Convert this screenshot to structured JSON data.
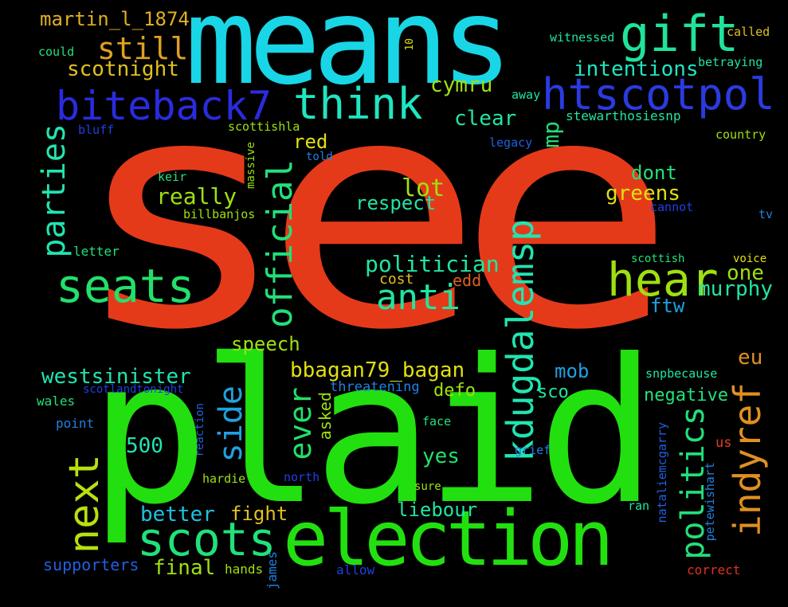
{
  "words": [
    {
      "id": "see",
      "text": "see",
      "color": "#e53a1a"
    },
    {
      "id": "plaid",
      "text": "plaid",
      "color": "#22e00f"
    },
    {
      "id": "means",
      "text": "means",
      "color": "#19d6e6"
    },
    {
      "id": "election",
      "text": "election",
      "color": "#22e00f"
    },
    {
      "id": "gift",
      "text": "gift",
      "color": "#20e39a"
    },
    {
      "id": "htscotpol",
      "text": "htscotpol",
      "color": "#2a3be0"
    },
    {
      "id": "biteback7",
      "text": "biteback7",
      "color": "#2a2be0"
    },
    {
      "id": "think",
      "text": "think",
      "color": "#20e5c0"
    },
    {
      "id": "seats",
      "text": "seats",
      "color": "#22e06a"
    },
    {
      "id": "hear",
      "text": "hear",
      "color": "#9fe010"
    },
    {
      "id": "scots",
      "text": "scots",
      "color": "#22e07a"
    },
    {
      "id": "next",
      "text": "next",
      "color": "#b8e010"
    },
    {
      "id": "official",
      "text": "official",
      "color": "#22e07a"
    },
    {
      "id": "kdugdalemsp",
      "text": "kdugdalemsp",
      "color": "#20e5b0"
    },
    {
      "id": "indyref",
      "text": "indyref",
      "color": "#e09020"
    },
    {
      "id": "anti",
      "text": "anti",
      "color": "#20e5a0"
    },
    {
      "id": "parties",
      "text": "parties",
      "color": "#20e5b0"
    },
    {
      "id": "politics",
      "text": "politics",
      "color": "#22e07a"
    },
    {
      "id": "side",
      "text": "side",
      "color": "#20a0e0"
    },
    {
      "id": "ever",
      "text": "ever",
      "color": "#22e06a"
    },
    {
      "id": "still",
      "text": "still",
      "color": "#e0a020"
    },
    {
      "id": "martin",
      "text": "martin_l_1874",
      "color": "#e0b020"
    },
    {
      "id": "scotnight",
      "text": "scotnight",
      "color": "#e0c020"
    },
    {
      "id": "intentions",
      "text": "intentions",
      "color": "#20e5c0"
    },
    {
      "id": "cymru",
      "text": "cymru",
      "color": "#9fe010"
    },
    {
      "id": "clear",
      "text": "clear",
      "color": "#20e5a0"
    },
    {
      "id": "mp",
      "text": "mp",
      "color": "#22e07a"
    },
    {
      "id": "lot",
      "text": "lot",
      "color": "#9fe010"
    },
    {
      "id": "greens",
      "text": "greens",
      "color": "#e0e010"
    },
    {
      "id": "dont",
      "text": "dont",
      "color": "#22e07a"
    },
    {
      "id": "respect",
      "text": "respect",
      "color": "#20e5a0"
    },
    {
      "id": "really",
      "text": "really",
      "color": "#9fe010"
    },
    {
      "id": "red",
      "text": "red",
      "color": "#e0e010"
    },
    {
      "id": "politician",
      "text": "politician",
      "color": "#20e5a0"
    },
    {
      "id": "one",
      "text": "one",
      "color": "#9fe010"
    },
    {
      "id": "murphy",
      "text": "murphy",
      "color": "#20e5a0"
    },
    {
      "id": "edd",
      "text": "edd",
      "color": "#e06020"
    },
    {
      "id": "cost",
      "text": "cost",
      "color": "#e0c020"
    },
    {
      "id": "ftw",
      "text": "ftw",
      "color": "#20a0e0"
    },
    {
      "id": "speech",
      "text": "speech",
      "color": "#9fe010"
    },
    {
      "id": "eu",
      "text": "eu",
      "color": "#e09020"
    },
    {
      "id": "westsinister",
      "text": "westsinister",
      "color": "#20e5b0"
    },
    {
      "id": "bbagan",
      "text": "bbagan79_bagan",
      "color": "#e0e010"
    },
    {
      "id": "mob",
      "text": "mob",
      "color": "#20a0e0"
    },
    {
      "id": "sco",
      "text": "sco",
      "color": "#20e5a0"
    },
    {
      "id": "defo",
      "text": "defo",
      "color": "#9fe010"
    },
    {
      "id": "negative",
      "text": "negative",
      "color": "#22e07a"
    },
    {
      "id": "threatening",
      "text": "threatening",
      "color": "#2080e0"
    },
    {
      "id": "asked",
      "text": "asked",
      "color": "#9fe010"
    },
    {
      "id": "yes",
      "text": "yes",
      "color": "#22e06a"
    },
    {
      "id": "500",
      "text": "500",
      "color": "#20e5b0"
    },
    {
      "id": "better",
      "text": "better",
      "color": "#20c0e0"
    },
    {
      "id": "fight",
      "text": "fight",
      "color": "#e0c020"
    },
    {
      "id": "final",
      "text": "final",
      "color": "#9fe010"
    },
    {
      "id": "liebour",
      "text": "liebour",
      "color": "#20e5a0"
    },
    {
      "id": "supporters",
      "text": "supporters",
      "color": "#2060e0"
    },
    {
      "id": "hands",
      "text": "hands",
      "color": "#9fe010"
    },
    {
      "id": "james",
      "text": "james",
      "color": "#2080e0"
    },
    {
      "id": "allow",
      "text": "allow",
      "color": "#2040e0"
    },
    {
      "id": "correct",
      "text": "correct",
      "color": "#e03020"
    },
    {
      "id": "witnessed",
      "text": "witnessed",
      "color": "#20e5a0"
    },
    {
      "id": "called",
      "text": "called",
      "color": "#e0c020"
    },
    {
      "id": "betraying",
      "text": "betraying",
      "color": "#20e5a0"
    },
    {
      "id": "away",
      "text": "away",
      "color": "#20e5a0"
    },
    {
      "id": "stewarthosiesnp",
      "text": "stewarthosiesnp",
      "color": "#20e5a0"
    },
    {
      "id": "country",
      "text": "country",
      "color": "#9fe010"
    },
    {
      "id": "legacy",
      "text": "legacy",
      "color": "#2060e0"
    },
    {
      "id": "cannot",
      "text": "cannot",
      "color": "#2040e0"
    },
    {
      "id": "tv",
      "text": "tv",
      "color": "#2080e0"
    },
    {
      "id": "scottish",
      "text": "scottish",
      "color": "#22e07a"
    },
    {
      "id": "voice",
      "text": "voice",
      "color": "#e0e010"
    },
    {
      "id": "snpbecause",
      "text": "snpbecause",
      "color": "#20e5a0"
    },
    {
      "id": "us",
      "text": "us",
      "color": "#e04020"
    },
    {
      "id": "nataliemcgarry",
      "text": "nataliemcgarry",
      "color": "#2060e0"
    },
    {
      "id": "petewishart",
      "text": "petewishart",
      "color": "#2080e0"
    },
    {
      "id": "ran",
      "text": "ran",
      "color": "#20e5a0"
    },
    {
      "id": "grief",
      "text": "grief",
      "color": "#2080e0"
    },
    {
      "id": "face",
      "text": "face",
      "color": "#22e07a"
    },
    {
      "id": "sure",
      "text": "sure",
      "color": "#9fe010"
    },
    {
      "id": "north",
      "text": "north",
      "color": "#2040e0"
    },
    {
      "id": "hardie",
      "text": "hardie",
      "color": "#9fe010"
    },
    {
      "id": "reaction",
      "text": "reaction",
      "color": "#2060e0"
    },
    {
      "id": "scotlandtonight",
      "text": "scotlandtonight",
      "color": "#2040e0"
    },
    {
      "id": "wales",
      "text": "wales",
      "color": "#22e07a"
    },
    {
      "id": "point",
      "text": "point",
      "color": "#2080e0"
    },
    {
      "id": "could",
      "text": "could",
      "color": "#22e07a"
    },
    {
      "id": "ten",
      "text": "10",
      "color": "#e0e010"
    },
    {
      "id": "bluff",
      "text": "bluff",
      "color": "#2040e0"
    },
    {
      "id": "scottishla",
      "text": "scottishla",
      "color": "#9fe010"
    },
    {
      "id": "massive",
      "text": "massive",
      "color": "#9fe010"
    },
    {
      "id": "told",
      "text": "told",
      "color": "#2080e0"
    },
    {
      "id": "keir",
      "text": "keir",
      "color": "#22e07a"
    },
    {
      "id": "billbanjos",
      "text": "billbanjos",
      "color": "#9fe010"
    },
    {
      "id": "letter",
      "text": "letter",
      "color": "#22e07a"
    }
  ]
}
